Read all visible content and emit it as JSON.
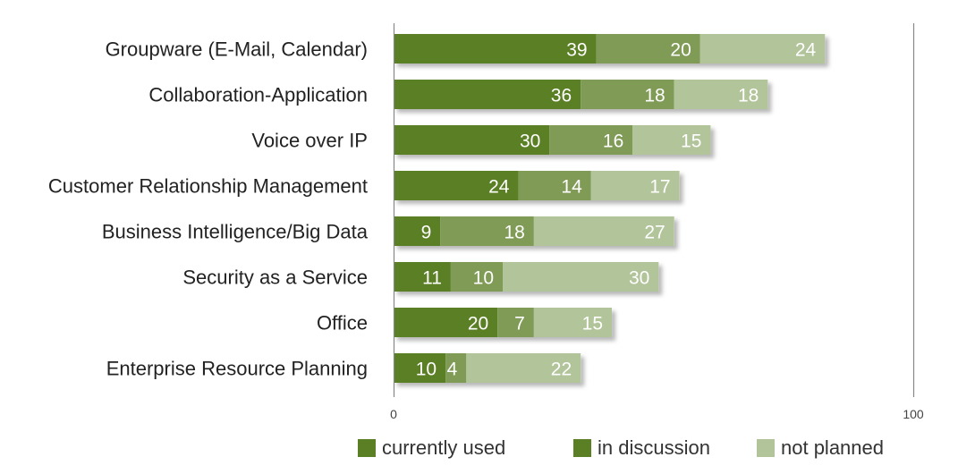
{
  "chart_data": {
    "type": "bar",
    "orientation": "horizontal",
    "stacked": true,
    "categories": [
      "Groupware (E-Mail, Calendar)",
      "Collaboration-Application",
      "Voice over IP",
      "Customer Relationship Management",
      "Business Intelligence/Big Data",
      "Security as a Service",
      "Office",
      "Enterprise Resource Planning"
    ],
    "series": [
      {
        "name": "currently used",
        "color": "#5a7f25",
        "values": [
          39,
          36,
          30,
          24,
          9,
          11,
          20,
          10
        ]
      },
      {
        "name": "in discussion",
        "color": "#7f9b56",
        "values": [
          20,
          18,
          16,
          14,
          18,
          10,
          7,
          4
        ]
      },
      {
        "name": "not planned",
        "color": "#b2c499",
        "values": [
          24,
          18,
          15,
          17,
          27,
          30,
          15,
          22
        ]
      }
    ],
    "xlim": [
      0,
      100
    ],
    "ticks": [
      "0",
      "100"
    ],
    "legend_position": "bottom",
    "grid": false,
    "bar_shadow": true
  },
  "legend": {
    "items": [
      {
        "label": "currently used",
        "color": "#5a7f25"
      },
      {
        "label": "in discussion",
        "color": "#5a7f25"
      },
      {
        "label": "not planned",
        "color": "#b2c499"
      }
    ]
  }
}
